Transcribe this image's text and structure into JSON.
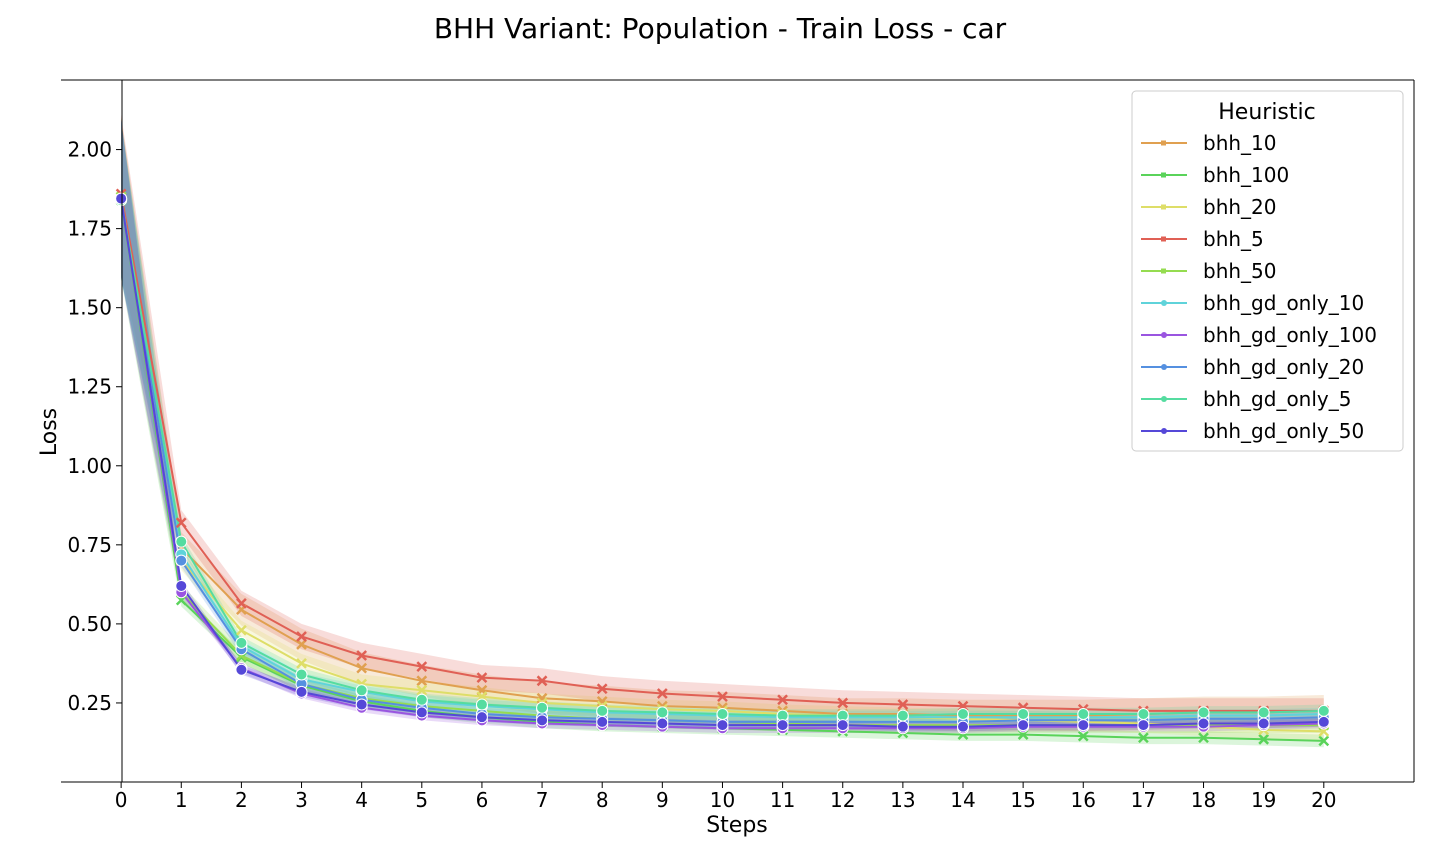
{
  "chart_data": {
    "type": "line",
    "title": "BHH Variant: Population - Train Loss - car",
    "xlabel": "Steps",
    "ylabel": "Loss",
    "x": [
      0,
      1,
      2,
      3,
      4,
      5,
      6,
      7,
      8,
      9,
      10,
      11,
      12,
      13,
      14,
      15,
      16,
      17,
      18,
      19,
      20
    ],
    "xlim": [
      -1,
      21.5
    ],
    "ylim": [
      0.0,
      2.22
    ],
    "yticks": [
      0.25,
      0.5,
      0.75,
      1.0,
      1.25,
      1.5,
      1.75,
      2.0
    ],
    "ytick_labels": [
      "0.25",
      "0.50",
      "0.75",
      "1.00",
      "1.25",
      "1.50",
      "1.75",
      "2.00"
    ],
    "xtick_labels": [
      "0",
      "1",
      "2",
      "3",
      "4",
      "5",
      "6",
      "7",
      "8",
      "9",
      "10",
      "11",
      "12",
      "13",
      "14",
      "15",
      "16",
      "17",
      "18",
      "19",
      "20"
    ],
    "grid": false,
    "legend": {
      "title": "Heuristic",
      "placement": "top-right"
    },
    "series": [
      {
        "name": "bhh_10",
        "color": "#e0a050",
        "marker": "x",
        "values": [
          1.85,
          0.74,
          0.545,
          0.435,
          0.36,
          0.32,
          0.29,
          0.265,
          0.255,
          0.24,
          0.235,
          0.225,
          0.215,
          0.215,
          0.21,
          0.21,
          0.21,
          0.215,
          0.22,
          0.22,
          0.225
        ],
        "band": 0.05
      },
      {
        "name": "bhh_100",
        "color": "#5ad35a",
        "marker": "x",
        "values": [
          1.84,
          0.575,
          0.395,
          0.305,
          0.255,
          0.225,
          0.205,
          0.19,
          0.18,
          0.175,
          0.17,
          0.165,
          0.16,
          0.155,
          0.15,
          0.15,
          0.145,
          0.14,
          0.14,
          0.135,
          0.13
        ],
        "band": 0.02
      },
      {
        "name": "bhh_20",
        "color": "#dede68",
        "marker": "x",
        "values": [
          1.85,
          0.7,
          0.48,
          0.375,
          0.31,
          0.29,
          0.27,
          0.25,
          0.24,
          0.23,
          0.225,
          0.215,
          0.21,
          0.205,
          0.2,
          0.195,
          0.19,
          0.185,
          0.175,
          0.165,
          0.16
        ],
        "band": 0.03
      },
      {
        "name": "bhh_5",
        "color": "#e06055",
        "marker": "x",
        "values": [
          1.86,
          0.82,
          0.565,
          0.46,
          0.4,
          0.365,
          0.33,
          0.32,
          0.295,
          0.28,
          0.27,
          0.26,
          0.25,
          0.245,
          0.24,
          0.235,
          0.23,
          0.225,
          0.225,
          0.225,
          0.225
        ],
        "band": 0.04
      },
      {
        "name": "bhh_50",
        "color": "#95dc50",
        "marker": "x",
        "values": [
          1.85,
          0.6,
          0.4,
          0.31,
          0.265,
          0.24,
          0.225,
          0.21,
          0.2,
          0.195,
          0.19,
          0.185,
          0.18,
          0.18,
          0.18,
          0.18,
          0.18,
          0.18,
          0.18,
          0.18,
          0.18
        ],
        "band": 0.025
      },
      {
        "name": "bhh_gd_only_10",
        "color": "#5fd3da",
        "marker": "o",
        "values": [
          1.84,
          0.72,
          0.43,
          0.325,
          0.285,
          0.255,
          0.24,
          0.23,
          0.22,
          0.215,
          0.21,
          0.205,
          0.205,
          0.205,
          0.205,
          0.205,
          0.205,
          0.205,
          0.21,
          0.21,
          0.215
        ],
        "band": 0.02
      },
      {
        "name": "bhh_gd_only_100",
        "color": "#9a55e0",
        "marker": "o",
        "values": [
          1.845,
          0.6,
          0.36,
          0.28,
          0.235,
          0.21,
          0.195,
          0.185,
          0.18,
          0.175,
          0.17,
          0.17,
          0.17,
          0.17,
          0.17,
          0.175,
          0.175,
          0.175,
          0.175,
          0.18,
          0.185
        ],
        "band": 0.015
      },
      {
        "name": "bhh_gd_only_20",
        "color": "#5590e0",
        "marker": "o",
        "values": [
          1.845,
          0.7,
          0.42,
          0.31,
          0.26,
          0.235,
          0.215,
          0.205,
          0.2,
          0.195,
          0.19,
          0.19,
          0.19,
          0.19,
          0.19,
          0.195,
          0.195,
          0.195,
          0.2,
          0.2,
          0.205
        ],
        "band": 0.02
      },
      {
        "name": "bhh_gd_only_5",
        "color": "#55dca0",
        "marker": "o",
        "values": [
          1.84,
          0.76,
          0.44,
          0.34,
          0.29,
          0.26,
          0.245,
          0.235,
          0.225,
          0.22,
          0.215,
          0.21,
          0.21,
          0.21,
          0.215,
          0.215,
          0.215,
          0.215,
          0.22,
          0.22,
          0.225
        ],
        "band": 0.02
      },
      {
        "name": "bhh_gd_only_50",
        "color": "#5548d8",
        "marker": "o",
        "values": [
          1.845,
          0.62,
          0.355,
          0.285,
          0.245,
          0.22,
          0.205,
          0.195,
          0.19,
          0.185,
          0.18,
          0.18,
          0.18,
          0.175,
          0.175,
          0.18,
          0.18,
          0.18,
          0.185,
          0.185,
          0.19
        ],
        "band": 0.015
      }
    ]
  }
}
